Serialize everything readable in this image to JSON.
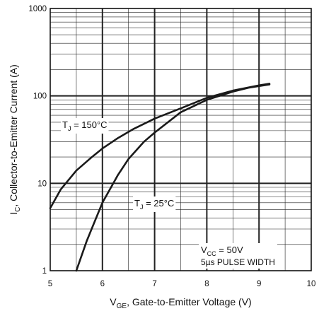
{
  "chart_data": {
    "type": "line",
    "x_scale": "linear",
    "y_scale": "log",
    "xlim": [
      5,
      10
    ],
    "ylim": [
      1,
      1000
    ],
    "x_ticks": [
      "5",
      "6",
      "7",
      "8",
      "9",
      "10"
    ],
    "y_ticks": [
      "1",
      "10",
      "100",
      "1000"
    ],
    "xlabel": {
      "main": "V",
      "sub": "GE",
      "rest": ", Gate-to-Emitter Voltage (V)"
    },
    "ylabel": {
      "main": "I",
      "sub": "C",
      "rest": ",  Collector-to-Emitter Current (A)"
    },
    "grid": true,
    "series": [
      {
        "label_main": "T",
        "label_sub": "J",
        "label_rest": " = 150°C",
        "x": [
          5.0,
          5.2,
          5.5,
          5.8,
          6.0,
          6.3,
          6.6,
          7.0,
          7.5,
          8.0,
          8.5,
          9.0,
          9.2
        ],
        "y": [
          5.2,
          8.5,
          14,
          20,
          25,
          33,
          42,
          55,
          72,
          95,
          115,
          132,
          138
        ]
      },
      {
        "label_main": "T",
        "label_sub": "J",
        "label_rest": " = 25°C",
        "x": [
          5.5,
          5.7,
          6.0,
          6.3,
          6.5,
          6.8,
          7.0,
          7.5,
          8.0,
          8.5,
          8.8,
          9.2
        ],
        "y": [
          1.0,
          2.2,
          6.0,
          12.5,
          19,
          30,
          38,
          65,
          90,
          112,
          124,
          135
        ]
      }
    ],
    "annotations": [
      {
        "main": "V",
        "sub": "CC",
        "rest": " = 50V"
      },
      {
        "text": "5µs PULSE WIDTH"
      }
    ],
    "colors": {
      "line": "#1a1a1a",
      "grid": "#222222",
      "text_bg": "#ffffff"
    }
  }
}
